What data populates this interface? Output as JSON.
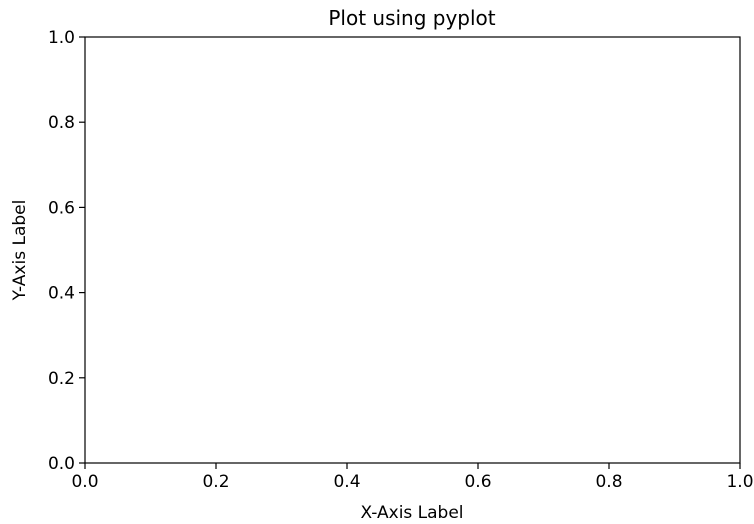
{
  "chart_data": {
    "type": "line",
    "title": "Plot using pyplot",
    "xlabel": "X-Axis Label",
    "ylabel": "Y-Axis Label",
    "xlim": [
      0.0,
      1.0
    ],
    "ylim": [
      0.0,
      1.0
    ],
    "x_ticks": [
      "0.0",
      "0.2",
      "0.4",
      "0.6",
      "0.8",
      "1.0"
    ],
    "y_ticks": [
      "0.0",
      "0.2",
      "0.4",
      "0.6",
      "0.8",
      "1.0"
    ],
    "grid": false,
    "series": []
  }
}
